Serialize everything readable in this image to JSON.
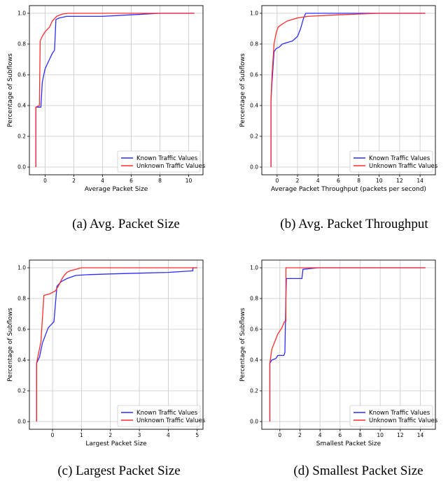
{
  "colors": {
    "known": "#2b2bff",
    "unknown": "#ff2b2b",
    "grid": "#c8c8c8",
    "axis": "#000000"
  },
  "captions": [
    "(a) Avg. Packet Size",
    "(b) Avg. Packet Throughput",
    "(c) Largest Packet Size",
    "(d) Smallest Packet Size"
  ],
  "chart_data": [
    {
      "type": "line",
      "xlabel": "Average Packet Size",
      "ylabel": "Percentage of Subflows",
      "xlim": [
        -1.1,
        11.0
      ],
      "ylim": [
        -0.05,
        1.05
      ],
      "xticks": [
        0,
        2,
        4,
        6,
        8,
        10
      ],
      "yticks": [
        0.0,
        0.2,
        0.4,
        0.6,
        0.8,
        1.0
      ],
      "grid": true,
      "legend_position": "lower-right",
      "series": [
        {
          "name": "Known Traffic Values",
          "color": "known",
          "x": [
            -0.65,
            -0.65,
            -0.3,
            -0.2,
            -0.1,
            0.0,
            0.2,
            0.5,
            0.65,
            0.75,
            1.0,
            1.5,
            4.0,
            6.0,
            8.0,
            10.4
          ],
          "y": [
            0.0,
            0.39,
            0.39,
            0.55,
            0.6,
            0.64,
            0.68,
            0.74,
            0.76,
            0.96,
            0.97,
            0.98,
            0.98,
            0.99,
            1.0,
            1.0
          ]
        },
        {
          "name": "Unknown Traffic Values",
          "color": "unknown",
          "x": [
            -0.65,
            -0.65,
            -0.4,
            -0.35,
            -0.2,
            0.0,
            0.3,
            0.5,
            0.8,
            1.2,
            1.6,
            3.0,
            10.4
          ],
          "y": [
            0.0,
            0.39,
            0.4,
            0.82,
            0.85,
            0.88,
            0.91,
            0.95,
            0.98,
            0.995,
            1.0,
            1.0,
            1.0
          ]
        }
      ]
    },
    {
      "type": "line",
      "xlabel": "Average Packet Throughput (packets per second)",
      "ylabel": "Percentage of Subflows",
      "xlim": [
        -1.5,
        15.5
      ],
      "ylim": [
        -0.05,
        1.05
      ],
      "xticks": [
        0,
        2,
        4,
        6,
        8,
        10,
        12,
        14
      ],
      "yticks": [
        0.0,
        0.2,
        0.4,
        0.6,
        0.8,
        1.0
      ],
      "grid": true,
      "legend_position": "lower-right",
      "series": [
        {
          "name": "Known Traffic Values",
          "color": "known",
          "x": [
            -0.6,
            -0.6,
            -0.5,
            -0.3,
            -0.1,
            0.2,
            0.5,
            1.0,
            1.5,
            2.0,
            2.3,
            2.6,
            2.8,
            3.0,
            5.0,
            14.5
          ],
          "y": [
            0.0,
            0.43,
            0.55,
            0.75,
            0.77,
            0.78,
            0.8,
            0.81,
            0.82,
            0.85,
            0.9,
            0.97,
            1.0,
            1.0,
            1.0,
            1.0
          ]
        },
        {
          "name": "Unknown Traffic Values",
          "color": "unknown",
          "x": [
            -0.6,
            -0.6,
            -0.5,
            -0.3,
            -0.1,
            0.1,
            0.5,
            1.0,
            2.0,
            3.0,
            6.0,
            10.0,
            14.5
          ],
          "y": [
            0.0,
            0.43,
            0.6,
            0.8,
            0.87,
            0.91,
            0.93,
            0.95,
            0.97,
            0.98,
            0.99,
            1.0,
            1.0
          ]
        }
      ]
    },
    {
      "type": "line",
      "xlabel": "Largest Packet Size",
      "ylabel": "Percentage of Subflows",
      "xlim": [
        -0.8,
        5.2
      ],
      "ylim": [
        -0.05,
        1.05
      ],
      "xticks": [
        0,
        1,
        2,
        3,
        4,
        5
      ],
      "yticks": [
        0.0,
        0.2,
        0.4,
        0.6,
        0.8,
        1.0
      ],
      "grid": true,
      "legend_position": "lower-right",
      "series": [
        {
          "name": "Known Traffic Values",
          "color": "known",
          "x": [
            -0.55,
            -0.55,
            -0.45,
            -0.35,
            -0.25,
            -0.15,
            -0.05,
            0.05,
            0.15,
            0.3,
            0.5,
            0.8,
            1.2,
            2.0,
            3.0,
            4.0,
            4.85,
            4.85,
            5.0
          ],
          "y": [
            0.0,
            0.38,
            0.42,
            0.51,
            0.56,
            0.61,
            0.63,
            0.65,
            0.88,
            0.91,
            0.93,
            0.95,
            0.955,
            0.96,
            0.965,
            0.97,
            0.98,
            1.0,
            1.0
          ]
        },
        {
          "name": "Unknown Traffic Values",
          "color": "unknown",
          "x": [
            -0.55,
            -0.55,
            -0.4,
            -0.3,
            -0.1,
            0.1,
            0.2,
            0.3,
            0.4,
            0.5,
            0.6,
            0.8,
            1.0,
            1.5,
            5.0
          ],
          "y": [
            0.0,
            0.38,
            0.52,
            0.82,
            0.83,
            0.85,
            0.88,
            0.92,
            0.95,
            0.97,
            0.98,
            0.99,
            1.0,
            1.0,
            1.0
          ]
        }
      ]
    },
    {
      "type": "line",
      "xlabel": "Smallest Packet Size",
      "ylabel": "Percentage of Subflows",
      "xlim": [
        -1.8,
        15.5
      ],
      "ylim": [
        -0.05,
        1.05
      ],
      "xticks": [
        0,
        2,
        4,
        6,
        8,
        10,
        12,
        14
      ],
      "yticks": [
        0.0,
        0.2,
        0.4,
        0.6,
        0.8,
        1.0
      ],
      "grid": true,
      "legend_position": "lower-right",
      "series": [
        {
          "name": "Known Traffic Values",
          "color": "known",
          "x": [
            -1.0,
            -1.0,
            -0.8,
            -0.4,
            -0.2,
            0.4,
            0.5,
            0.6,
            0.65,
            2.2,
            2.3,
            3.8,
            14.5
          ],
          "y": [
            0.0,
            0.38,
            0.4,
            0.41,
            0.43,
            0.43,
            0.45,
            0.8,
            0.93,
            0.93,
            0.99,
            1.0,
            1.0
          ]
        },
        {
          "name": "Unknown Traffic Values",
          "color": "unknown",
          "x": [
            -1.0,
            -1.0,
            -0.8,
            -0.5,
            -0.2,
            0.2,
            0.45,
            0.6,
            0.6,
            1.0,
            14.5
          ],
          "y": [
            0.0,
            0.38,
            0.47,
            0.52,
            0.57,
            0.61,
            0.65,
            0.65,
            1.0,
            1.0,
            1.0
          ]
        }
      ]
    }
  ]
}
